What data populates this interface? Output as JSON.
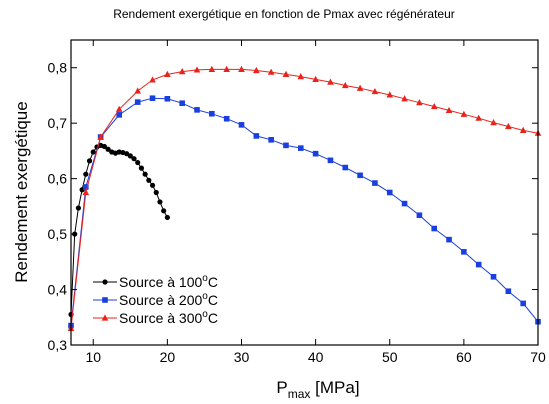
{
  "chart_data": {
    "type": "line",
    "title": "Rendement exergétique en fonction de Pmax avec régénérateur",
    "xlabel": {
      "main": "P",
      "sub": "max",
      "rest": "[MPa]"
    },
    "ylabel": "Rendement exergétique",
    "xlim": [
      7,
      70
    ],
    "ylim": [
      0.3,
      0.85
    ],
    "xticks": [
      10,
      20,
      30,
      40,
      50,
      60,
      70
    ],
    "xtick_labels": [
      "10",
      "20",
      "30",
      "40",
      "50",
      "60",
      "70"
    ],
    "yticks": [
      0.3,
      0.4,
      0.5,
      0.6,
      0.7,
      0.8
    ],
    "ytick_labels": [
      "0,3",
      "0,4",
      "0,5",
      "0,6",
      "0,7",
      "0,8"
    ],
    "grid": false,
    "legend_position": "bottom-left",
    "series": [
      {
        "name": {
          "main": "Source à 100",
          "sup": "o",
          "tail": "C"
        },
        "color": "#000000",
        "marker": "circle",
        "x": [
          7,
          7.5,
          8,
          8.5,
          9,
          9.5,
          10,
          10.5,
          11,
          11.5,
          12,
          12.5,
          13,
          13.5,
          14,
          14.5,
          15,
          15.5,
          16,
          16.5,
          17,
          17.5,
          18,
          18.5,
          19,
          19.5,
          20
        ],
        "y": [
          0.355,
          0.5,
          0.547,
          0.58,
          0.608,
          0.632,
          0.648,
          0.657,
          0.66,
          0.658,
          0.653,
          0.648,
          0.646,
          0.648,
          0.647,
          0.645,
          0.641,
          0.636,
          0.629,
          0.619,
          0.608,
          0.597,
          0.588,
          0.575,
          0.558,
          0.542,
          0.53
        ]
      },
      {
        "name": {
          "main": "Source à 200",
          "sup": "o",
          "tail": "C"
        },
        "color": "#1a3fe0",
        "marker": "square",
        "x": [
          7,
          9,
          11,
          13.5,
          16,
          18,
          20,
          22,
          24,
          26,
          28,
          30,
          32,
          34,
          36,
          38,
          40,
          42,
          44,
          46,
          48,
          50,
          52,
          54,
          56,
          58,
          60,
          62,
          64,
          66,
          68,
          70
        ],
        "y": [
          0.335,
          0.585,
          0.675,
          0.715,
          0.738,
          0.745,
          0.744,
          0.736,
          0.724,
          0.717,
          0.708,
          0.697,
          0.677,
          0.67,
          0.66,
          0.655,
          0.645,
          0.633,
          0.62,
          0.606,
          0.592,
          0.575,
          0.555,
          0.534,
          0.51,
          0.49,
          0.468,
          0.445,
          0.423,
          0.397,
          0.375,
          0.342
        ]
      },
      {
        "name": {
          "main": "Source à 300",
          "sup": "o",
          "tail": "C"
        },
        "color": "#e8231c",
        "marker": "triangle",
        "x": [
          7,
          9,
          11,
          13.5,
          16,
          18,
          20,
          22,
          24,
          26,
          28,
          30,
          32,
          34,
          36,
          38,
          40,
          42,
          44,
          46,
          48,
          50,
          52,
          54,
          56,
          58,
          60,
          62,
          64,
          66,
          68,
          70
        ],
        "y": [
          0.33,
          0.575,
          0.675,
          0.725,
          0.758,
          0.778,
          0.788,
          0.793,
          0.796,
          0.797,
          0.797,
          0.797,
          0.795,
          0.792,
          0.788,
          0.784,
          0.779,
          0.774,
          0.768,
          0.763,
          0.757,
          0.751,
          0.744,
          0.737,
          0.73,
          0.723,
          0.716,
          0.709,
          0.701,
          0.694,
          0.687,
          0.682
        ]
      }
    ]
  }
}
